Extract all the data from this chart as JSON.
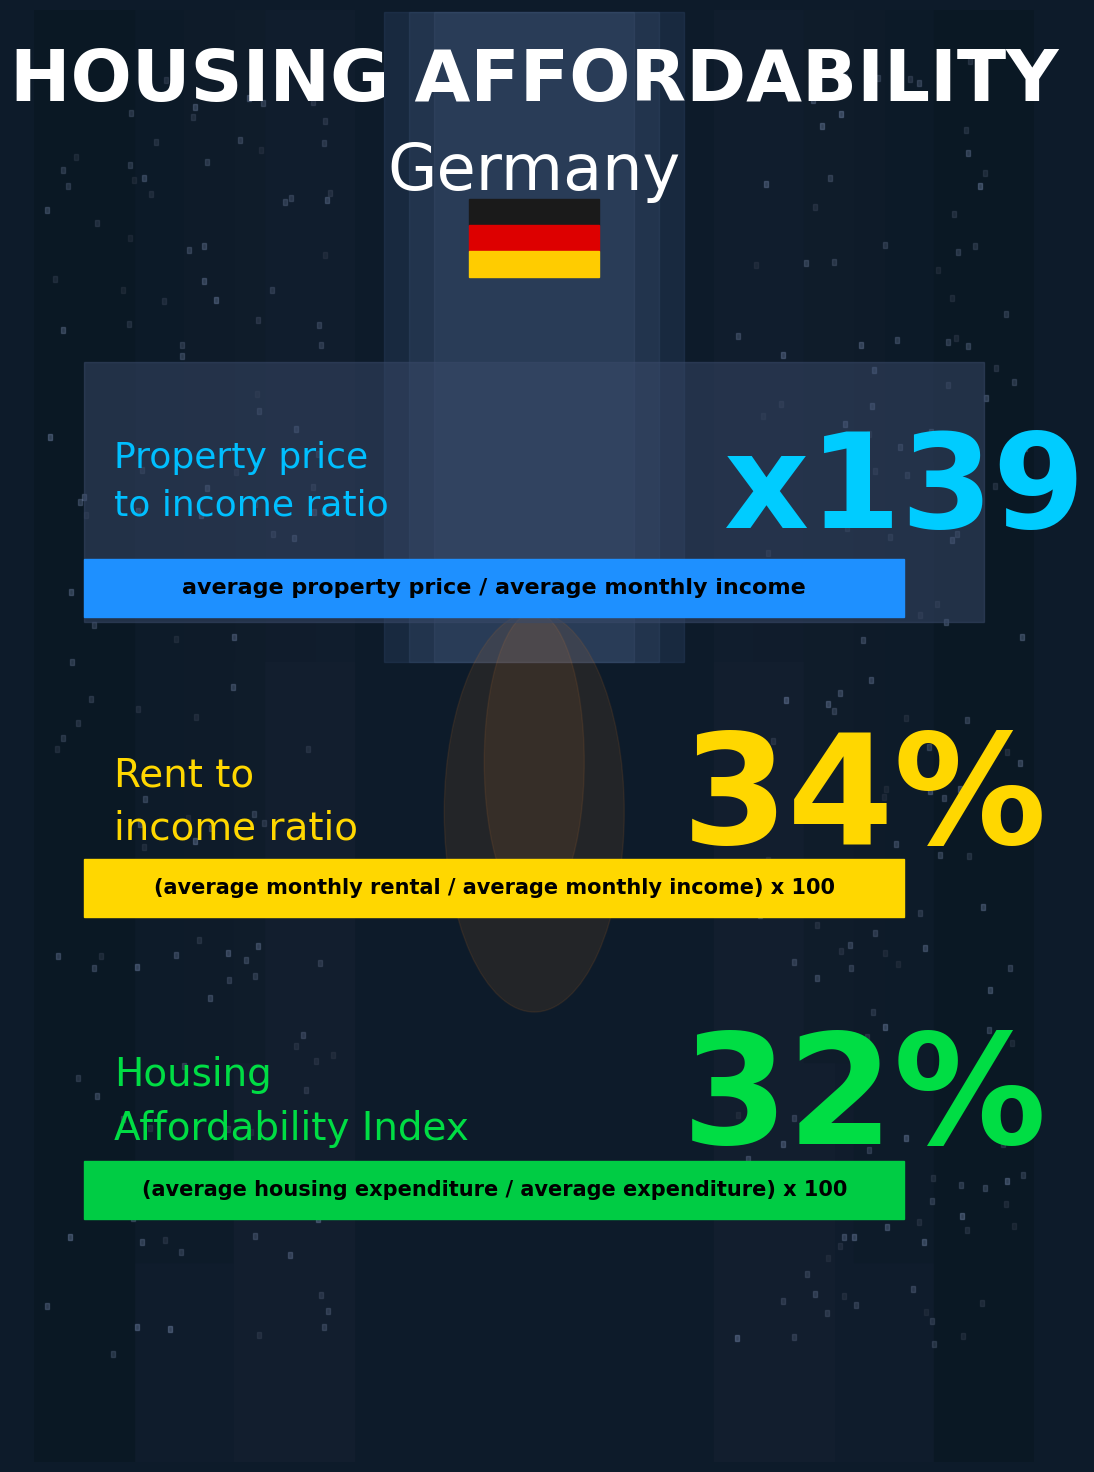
{
  "title_line1": "HOUSING AFFORDABILITY",
  "title_line2": "Germany",
  "bg_color": "#0d1b2a",
  "section1_label": "Property price\nto income ratio",
  "section1_value": "x139",
  "section1_label_color": "#00bfff",
  "section1_value_color": "#00ccff",
  "section1_desc": "average property price / average monthly income",
  "section1_desc_bg": "#1e90ff",
  "section1_panel_color": "#3a4a6a",
  "section1_panel_alpha": 0.5,
  "section2_label": "Rent to\nincome ratio",
  "section2_value": "34%",
  "section2_label_color": "#ffd700",
  "section2_value_color": "#ffd700",
  "section2_desc": "(average monthly rental / average monthly income) x 100",
  "section2_desc_bg": "#ffd700",
  "section3_label": "Housing\nAffordability Index",
  "section3_value": "32%",
  "section3_label_color": "#00dd44",
  "section3_value_color": "#00dd44",
  "section3_desc": "(average housing expenditure / average expenditure) x 100",
  "section3_desc_bg": "#00cc44",
  "text_color_black": "#000000",
  "white": "#ffffff"
}
